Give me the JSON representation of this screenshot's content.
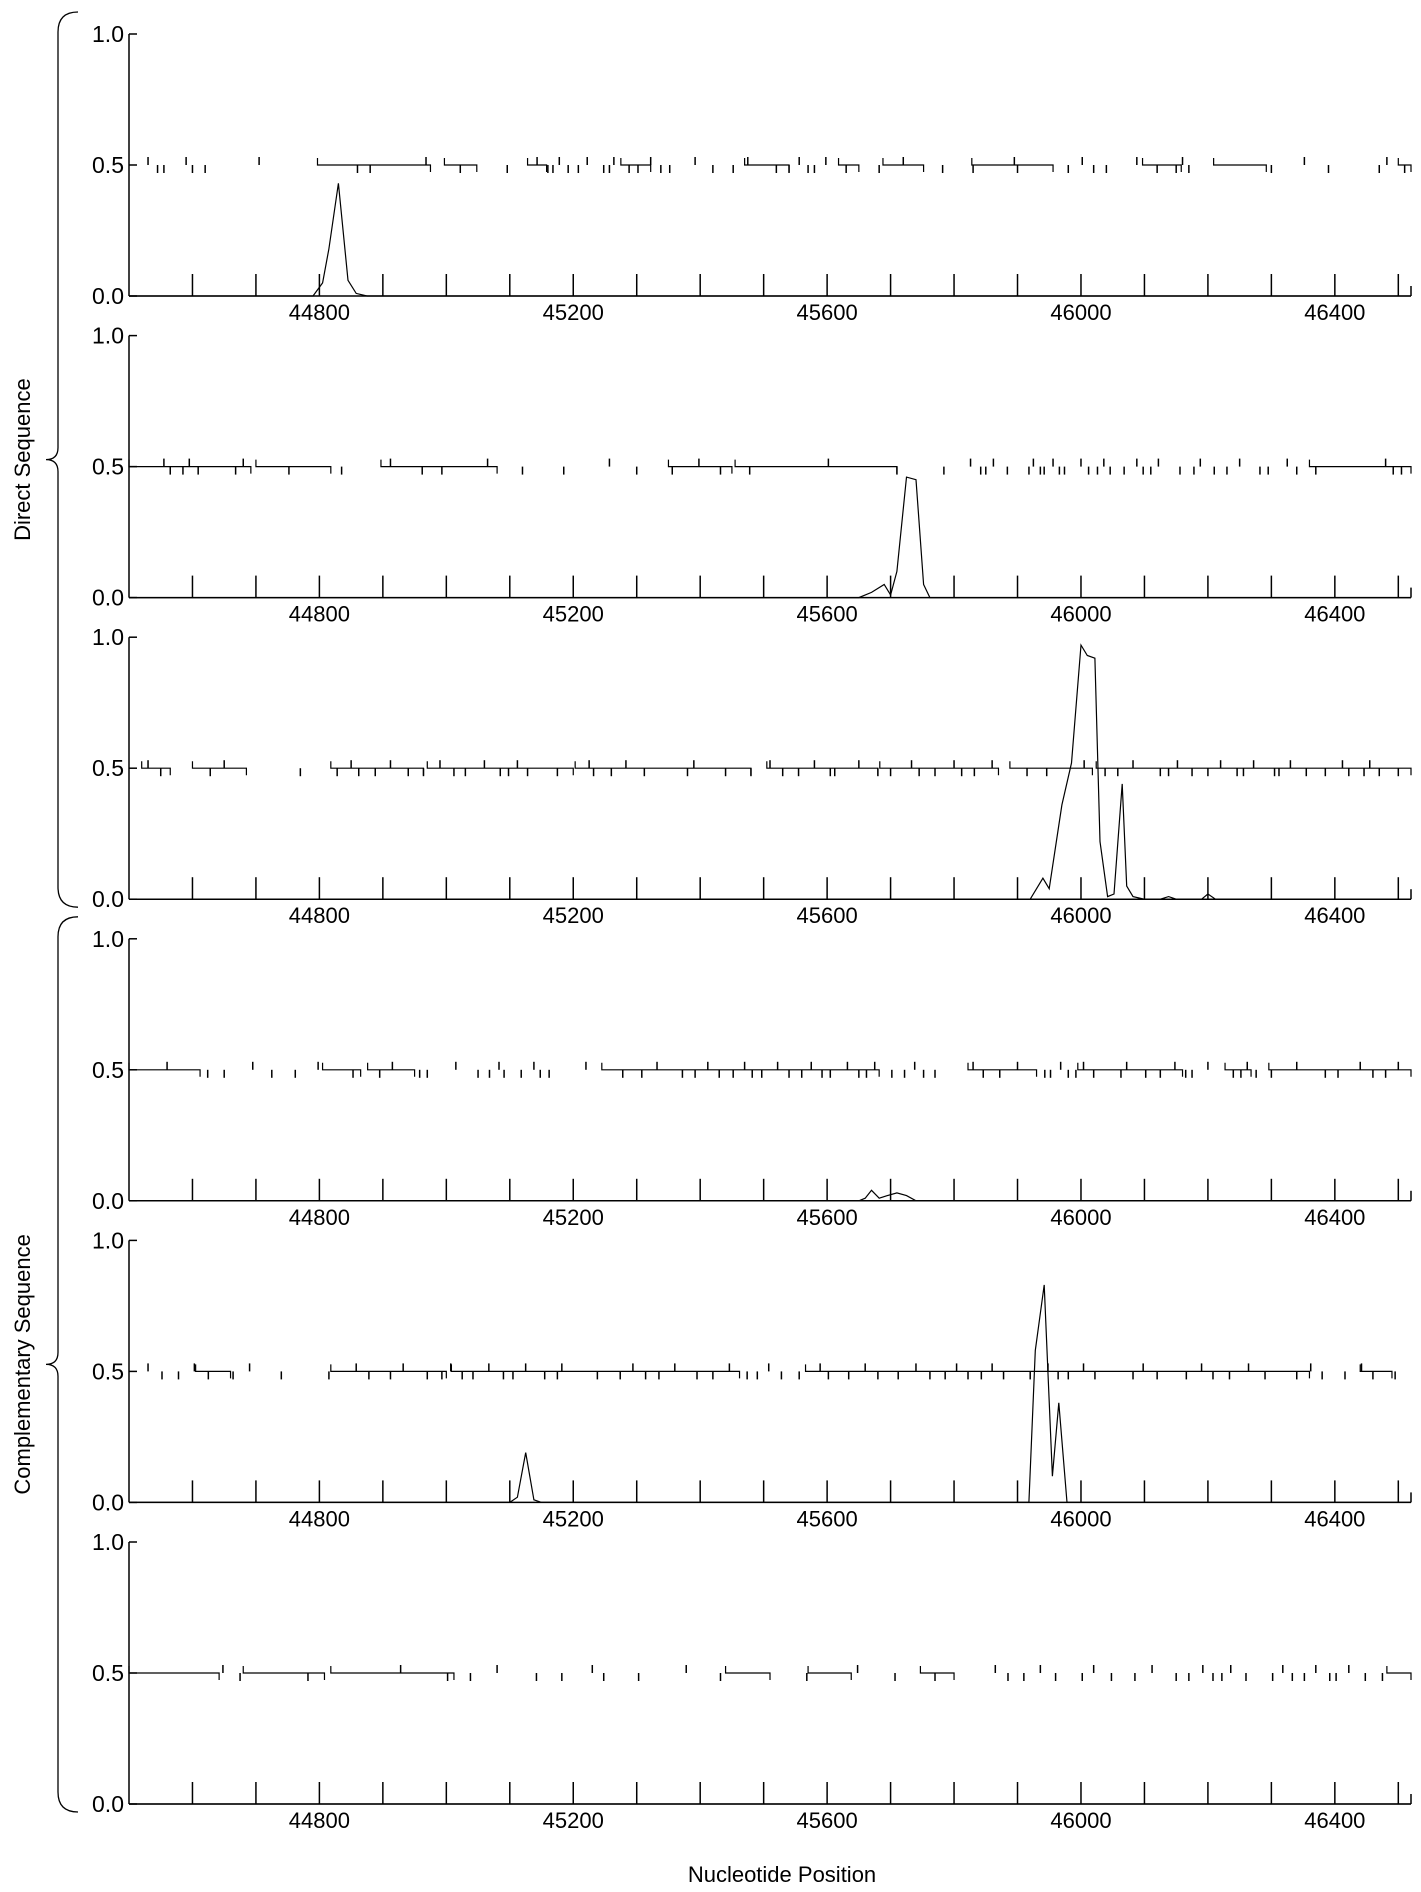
{
  "chart_data": {
    "type": "line",
    "xlabel": "Nucleotide Position",
    "xlim": [
      44500,
      46520
    ],
    "ylim": [
      0,
      1.0
    ],
    "x_ticks": [
      44800,
      45200,
      45600,
      46000,
      46400
    ],
    "y_ticks": [
      "0.0",
      "0.5",
      "1.0"
    ],
    "codon_marks": [
      44600,
      44700,
      44800,
      44900,
      45000,
      45100,
      45200,
      45300,
      45400,
      45500,
      45600,
      45700,
      45800,
      45900,
      46000,
      46100,
      46200,
      46300,
      46400,
      46500
    ],
    "groups": [
      {
        "label": "Direct Sequence",
        "panels": [
          0,
          1,
          2
        ]
      },
      {
        "label": "Complementary Sequence",
        "panels": [
          3,
          4,
          5
        ]
      }
    ],
    "panels": [
      {
        "has_top_label": true,
        "coding_potential": [
          [
            44500,
            0
          ],
          [
            44790,
            0
          ],
          [
            44805,
            0.05
          ],
          [
            44815,
            0.18
          ],
          [
            44830,
            0.43
          ],
          [
            44845,
            0.06
          ],
          [
            44858,
            0.01
          ],
          [
            44875,
            0
          ],
          [
            46520,
            0
          ]
        ],
        "orfs": [
          [
            44797,
            44975
          ],
          [
            44997,
            45048
          ],
          [
            45128,
            45158
          ],
          [
            45275,
            45322
          ],
          [
            45470,
            45540
          ],
          [
            45618,
            45650
          ],
          [
            45688,
            45752
          ],
          [
            45828,
            45956
          ],
          [
            46097,
            46158
          ],
          [
            46209,
            46292
          ],
          [
            46500,
            46520
          ]
        ],
        "stops": [
          44530,
          44545,
          44555,
          44590,
          44600,
          44620,
          44705,
          44860,
          44880,
          44968,
          45022,
          45096,
          45143,
          45160,
          45168,
          45178,
          45192,
          45208,
          45222,
          45248,
          45257,
          45264,
          45288,
          45302,
          45322,
          45338,
          45352,
          45392,
          45420,
          45452,
          45475,
          45520,
          45540,
          45556,
          45570,
          45580,
          45598,
          45630,
          45682,
          45720,
          45782,
          45830,
          45895,
          45900,
          45980,
          46002,
          46020,
          46040,
          46088,
          46120,
          46150,
          46160,
          46170,
          46300,
          46352,
          46390,
          46470,
          46482,
          46510
        ]
      },
      {
        "has_top_label": true,
        "coding_potential": [
          [
            44500,
            0
          ],
          [
            45650,
            0
          ],
          [
            45670,
            0.02
          ],
          [
            45690,
            0.05
          ],
          [
            45700,
            0.01
          ],
          [
            45710,
            0.1
          ],
          [
            45725,
            0.46
          ],
          [
            45740,
            0.45
          ],
          [
            45752,
            0.05
          ],
          [
            45762,
            0
          ],
          [
            46520,
            0
          ]
        ],
        "orfs": [
          [
            44500,
            44692
          ],
          [
            44700,
            44818
          ],
          [
            44897,
            45080
          ],
          [
            45350,
            45450
          ],
          [
            45455,
            45710
          ],
          [
            46360,
            46520
          ]
        ],
        "stops": [
          44555,
          44565,
          44585,
          44595,
          44609,
          44668,
          44680,
          44752,
          44835,
          44912,
          44962,
          44993,
          45065,
          45120,
          45185,
          45257,
          45300,
          45356,
          45398,
          45432,
          45478,
          45602,
          45710,
          45784,
          45826,
          45842,
          45850,
          45862,
          45884,
          45918,
          45925,
          45936,
          45942,
          45956,
          45966,
          45974,
          46000,
          46012,
          46026,
          46036,
          46046,
          46068,
          46088,
          46098,
          46110,
          46122,
          46156,
          46178,
          46188,
          46210,
          46230,
          46250,
          46282,
          46295,
          46325,
          46340,
          46370,
          46480,
          46492,
          46505
        ]
      },
      {
        "has_top_label": true,
        "coding_potential": [
          [
            44500,
            0
          ],
          [
            45920,
            0
          ],
          [
            45940,
            0.08
          ],
          [
            45950,
            0.04
          ],
          [
            45970,
            0.36
          ],
          [
            45985,
            0.52
          ],
          [
            46000,
            0.97
          ],
          [
            46010,
            0.93
          ],
          [
            46022,
            0.92
          ],
          [
            46030,
            0.22
          ],
          [
            46042,
            0.01
          ],
          [
            46052,
            0.02
          ],
          [
            46065,
            0.44
          ],
          [
            46072,
            0.05
          ],
          [
            46082,
            0.01
          ],
          [
            46100,
            0
          ],
          [
            46125,
            0
          ],
          [
            46138,
            0.01
          ],
          [
            46150,
            0
          ],
          [
            46190,
            0
          ],
          [
            46200,
            0.02
          ],
          [
            46212,
            0
          ],
          [
            46520,
            0
          ]
        ],
        "orfs": [
          [
            44520,
            44565
          ],
          [
            44600,
            44685
          ],
          [
            44818,
            44964
          ],
          [
            44970,
            45200
          ],
          [
            45203,
            45480
          ],
          [
            45505,
            45680
          ],
          [
            45683,
            45870
          ],
          [
            45888,
            46018
          ],
          [
            46024,
            46520
          ]
        ],
        "stops": [
          44530,
          44550,
          44628,
          44650,
          44770,
          44828,
          44850,
          44862,
          44888,
          44912,
          44940,
          44964,
          44990,
          45012,
          45030,
          45060,
          45085,
          45098,
          45112,
          45128,
          45175,
          45225,
          45232,
          45260,
          45283,
          45312,
          45380,
          45390,
          45440,
          45480,
          45510,
          45530,
          45555,
          45580,
          45605,
          45612,
          45650,
          45680,
          45700,
          45733,
          45745,
          45770,
          45800,
          45812,
          45832,
          45860,
          45915,
          45946,
          46005,
          46038,
          46058,
          46082,
          46125,
          46138,
          46152,
          46175,
          46200,
          46220,
          46246,
          46256,
          46272,
          46305,
          46312,
          46330,
          46355,
          46385,
          46412,
          46422,
          46446,
          46455,
          46470,
          46500
        ]
      },
      {
        "has_top_label": true,
        "coding_potential": [
          [
            44500,
            0
          ],
          [
            45650,
            0
          ],
          [
            45660,
            0.01
          ],
          [
            45670,
            0.04
          ],
          [
            45682,
            0.01
          ],
          [
            45695,
            0.02
          ],
          [
            45710,
            0.03
          ],
          [
            45725,
            0.02
          ],
          [
            45740,
            0
          ],
          [
            46520,
            0
          ]
        ],
        "orfs": [
          [
            44500,
            44612
          ],
          [
            44805,
            44865
          ],
          [
            44876,
            44950
          ],
          [
            45245,
            45682
          ],
          [
            45822,
            45930
          ],
          [
            45995,
            46160
          ],
          [
            46227,
            46268
          ],
          [
            46296,
            46520
          ]
        ],
        "stops": [
          44560,
          44624,
          44650,
          44695,
          44725,
          44762,
          44798,
          44853,
          44895,
          44915,
          44958,
          44970,
          45015,
          45050,
          45068,
          45083,
          45091,
          45118,
          45138,
          45148,
          45162,
          45220,
          45278,
          45308,
          45332,
          45372,
          45392,
          45412,
          45430,
          45452,
          45470,
          45482,
          45497,
          45522,
          45540,
          45560,
          45575,
          45592,
          45605,
          45632,
          45650,
          45662,
          45675,
          45702,
          45722,
          45738,
          45752,
          45770,
          45830,
          45846,
          45872,
          45900,
          45943,
          45952,
          45968,
          45980,
          45992,
          46004,
          46020,
          46063,
          46072,
          46102,
          46125,
          46148,
          46165,
          46175,
          46200,
          46240,
          46252,
          46262,
          46276,
          46300,
          46340,
          46385,
          46405,
          46440,
          46460,
          46480,
          46500
        ]
      },
      {
        "has_top_label": true,
        "coding_potential": [
          [
            44500,
            0
          ],
          [
            45100,
            0
          ],
          [
            45112,
            0.02
          ],
          [
            45125,
            0.19
          ],
          [
            45138,
            0.01
          ],
          [
            45150,
            0
          ],
          [
            45918,
            0
          ],
          [
            45928,
            0.58
          ],
          [
            45942,
            0.83
          ],
          [
            45955,
            0.1
          ],
          [
            45965,
            0.38
          ],
          [
            45978,
            0
          ],
          [
            46520,
            0
          ]
        ],
        "orfs": [
          [
            44605,
            44660
          ],
          [
            44818,
            45000
          ],
          [
            45008,
            45462
          ],
          [
            45566,
            46360
          ],
          [
            46440,
            46490
          ]
        ],
        "stops": [
          44530,
          44552,
          44578,
          44603,
          44625,
          44664,
          44690,
          44740,
          44815,
          44858,
          44878,
          44912,
          44932,
          44970,
          44993,
          45007,
          45025,
          45042,
          45067,
          45090,
          45105,
          45125,
          45155,
          45175,
          45182,
          45238,
          45274,
          45294,
          45314,
          45335,
          45360,
          45395,
          45420,
          45446,
          45474,
          45490,
          45508,
          45528,
          45556,
          45589,
          45602,
          45634,
          45660,
          45680,
          45712,
          45740,
          45762,
          45786,
          45804,
          45822,
          45843,
          45860,
          45878,
          45920,
          45948,
          45964,
          45980,
          46004,
          46022,
          46082,
          46098,
          46120,
          46166,
          46190,
          46208,
          46234,
          46264,
          46290,
          46340,
          46362,
          46380,
          46416,
          46442,
          46460,
          46495
        ]
      },
      {
        "has_top_label": true,
        "coding_potential": [
          [
            44500,
            0
          ],
          [
            46520,
            0
          ]
        ],
        "orfs": [
          [
            44500,
            44642
          ],
          [
            44680,
            44808
          ],
          [
            44818,
            45012
          ],
          [
            45440,
            45510
          ],
          [
            45570,
            45638
          ],
          [
            45747,
            45800
          ],
          [
            46482,
            46520
          ]
        ],
        "stops": [
          44648,
          44675,
          44782,
          44928,
          45002,
          45038,
          45080,
          45142,
          45182,
          45230,
          45248,
          45303,
          45378,
          45432,
          45568,
          45648,
          45707,
          45770,
          45865,
          45885,
          45910,
          45936,
          45960,
          46002,
          46020,
          46048,
          46085,
          46112,
          46150,
          46170,
          46192,
          46208,
          46222,
          46236,
          46260,
          46302,
          46318,
          46333,
          46352,
          46370,
          46392,
          46402,
          46422,
          46448,
          46475
        ]
      }
    ]
  }
}
